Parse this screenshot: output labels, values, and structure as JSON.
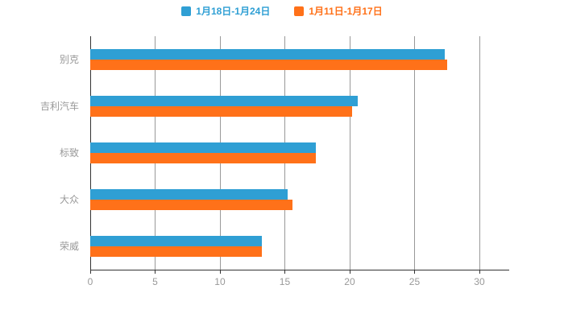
{
  "legend": [
    {
      "label": "1月18日-1月24日",
      "color": "#2f9fd4"
    },
    {
      "label": "1月11日-1月17日",
      "color": "#ff7119"
    }
  ],
  "chart_data": {
    "type": "bar",
    "orientation": "horizontal",
    "title": "",
    "xlabel": "",
    "ylabel": "",
    "categories": [
      "别克",
      "吉利汽车",
      "标致",
      "大众",
      "荣威"
    ],
    "series": [
      {
        "name": "1月18日-1月24日",
        "color": "#2f9fd4",
        "values": [
          27.3,
          20.6,
          17.4,
          15.2,
          13.2
        ]
      },
      {
        "name": "1月11日-1月17日",
        "color": "#ff7119",
        "values": [
          27.5,
          20.2,
          17.4,
          15.6,
          13.2
        ]
      }
    ],
    "x_ticks": [
      0,
      5,
      10,
      15,
      20,
      25,
      30
    ],
    "xlim": [
      0,
      30
    ],
    "grid": true,
    "legend_position": "top"
  }
}
